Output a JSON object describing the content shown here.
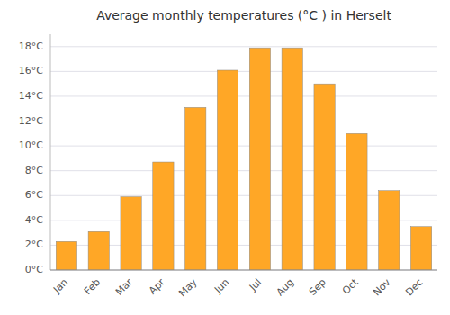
{
  "chart_data": {
    "type": "bar",
    "title": "Average monthly temperatures (°C ) in Herselt",
    "categories": [
      "Jan",
      "Feb",
      "Mar",
      "Apr",
      "May",
      "Jun",
      "Jul",
      "Aug",
      "Sep",
      "Oct",
      "Nov",
      "Dec"
    ],
    "values": [
      2.3,
      3.1,
      5.9,
      8.7,
      13.1,
      16.1,
      17.9,
      17.9,
      15.0,
      11.0,
      6.4,
      3.5
    ],
    "color": "#FFA726",
    "ylim": [
      0,
      19
    ],
    "yticks": [
      {
        "value": 0,
        "label": "0°C"
      },
      {
        "value": 2,
        "label": "2°C"
      },
      {
        "value": 4,
        "label": "4°C"
      },
      {
        "value": 6,
        "label": "6°C"
      },
      {
        "value": 8,
        "label": "8°C"
      },
      {
        "value": 10,
        "label": "10°C"
      },
      {
        "value": 12,
        "label": "12°C"
      },
      {
        "value": 14,
        "label": "14°C"
      },
      {
        "value": 16,
        "label": "16°C"
      },
      {
        "value": 18,
        "label": "18°C"
      }
    ],
    "grid": true
  }
}
